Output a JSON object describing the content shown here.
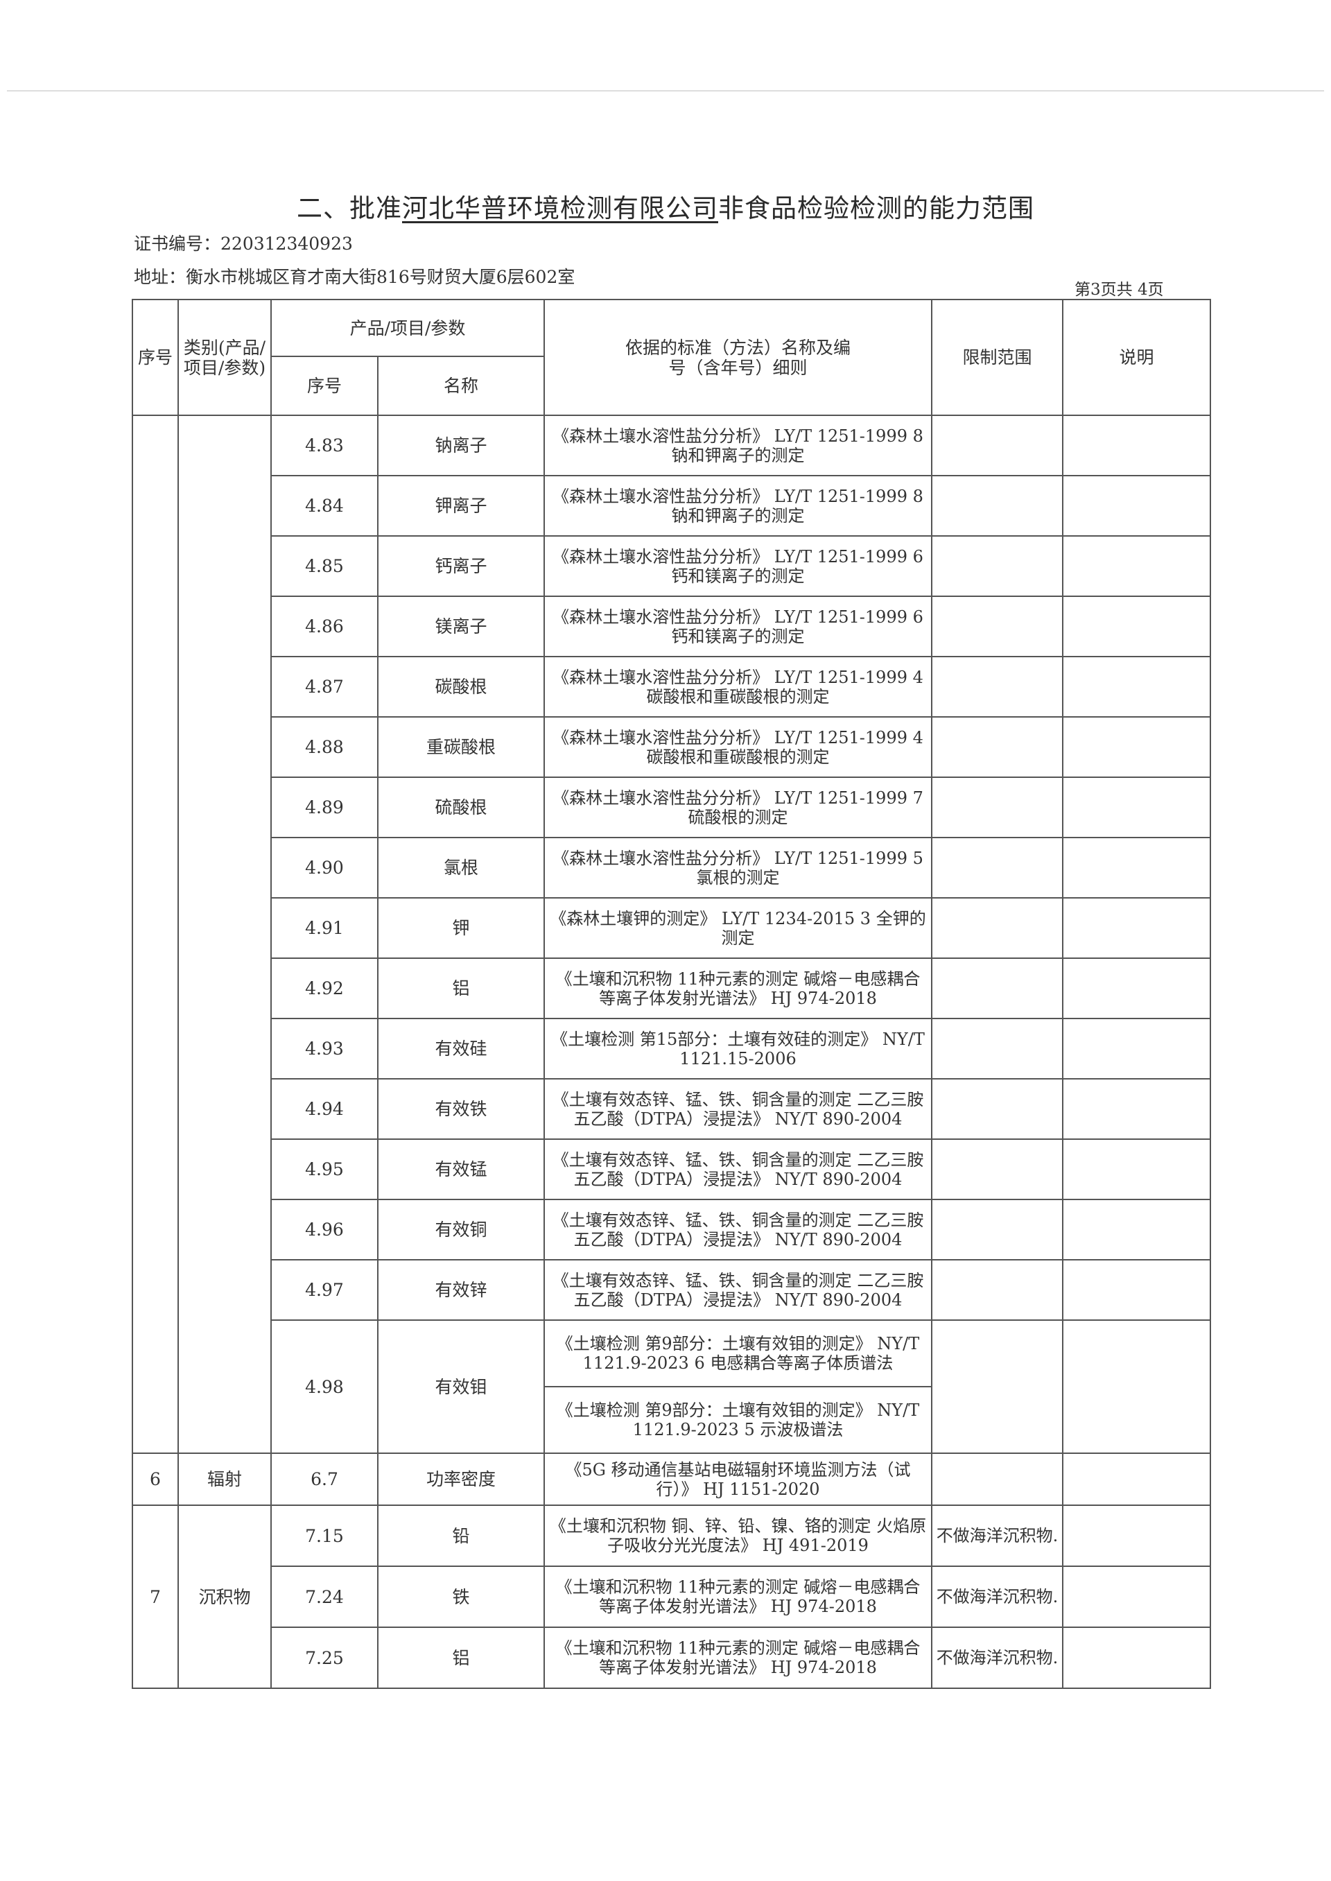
{
  "title": {
    "prefix": "二、批准",
    "company": "河北华普环境检测有限公司",
    "suffix": "非食品检验检测的能力范围"
  },
  "certificate": {
    "label": "证书编号：",
    "value": "220312340923"
  },
  "address": {
    "label": "地址：",
    "value": "衡水市桃城区育才南大街816号财贸大厦6层602室"
  },
  "page_indicator": "第3页共 4页",
  "headers": {
    "seq": "序号",
    "category": "类别(产品/项目/参数)",
    "product_group": "产品/项目/参数",
    "item_seq": "序号",
    "item_name": "名称",
    "standard": "依据的标准（方法）名称及编号（含年号）细则",
    "limit": "限制范围",
    "note": "说明"
  },
  "sections": [
    {
      "seq": "",
      "category": "",
      "items": [
        {
          "no": "4.83",
          "name": "钠离子",
          "standards": [
            "《森林土壤水溶性盐分分析》 LY/T 1251-1999 8 钠和钾离子的测定"
          ],
          "limit": ""
        },
        {
          "no": "4.84",
          "name": "钾离子",
          "standards": [
            "《森林土壤水溶性盐分分析》 LY/T 1251-1999 8 钠和钾离子的测定"
          ],
          "limit": ""
        },
        {
          "no": "4.85",
          "name": "钙离子",
          "standards": [
            "《森林土壤水溶性盐分分析》 LY/T 1251-1999 6 钙和镁离子的测定"
          ],
          "limit": ""
        },
        {
          "no": "4.86",
          "name": "镁离子",
          "standards": [
            "《森林土壤水溶性盐分分析》 LY/T 1251-1999 6 钙和镁离子的测定"
          ],
          "limit": ""
        },
        {
          "no": "4.87",
          "name": "碳酸根",
          "standards": [
            "《森林土壤水溶性盐分分析》 LY/T 1251-1999 4 碳酸根和重碳酸根的测定"
          ],
          "limit": ""
        },
        {
          "no": "4.88",
          "name": "重碳酸根",
          "standards": [
            "《森林土壤水溶性盐分分析》 LY/T 1251-1999 4 碳酸根和重碳酸根的测定"
          ],
          "limit": ""
        },
        {
          "no": "4.89",
          "name": "硫酸根",
          "standards": [
            "《森林土壤水溶性盐分分析》 LY/T 1251-1999 7 硫酸根的测定"
          ],
          "limit": ""
        },
        {
          "no": "4.90",
          "name": "氯根",
          "standards": [
            "《森林土壤水溶性盐分分析》 LY/T 1251-1999 5 氯根的测定"
          ],
          "limit": ""
        },
        {
          "no": "4.91",
          "name": "钾",
          "standards": [
            "《森林土壤钾的测定》 LY/T 1234-2015 3 全钾的测定"
          ],
          "limit": ""
        },
        {
          "no": "4.92",
          "name": "铝",
          "standards": [
            "《土壤和沉积物 11种元素的测定 碱熔－电感耦合等离子体发射光谱法》 HJ 974-2018"
          ],
          "limit": ""
        },
        {
          "no": "4.93",
          "name": "有效硅",
          "standards": [
            "《土壤检测 第15部分：土壤有效硅的测定》 NY/T 1121.15-2006"
          ],
          "limit": ""
        },
        {
          "no": "4.94",
          "name": "有效铁",
          "standards": [
            "《土壤有效态锌、锰、铁、铜含量的测定 二乙三胺五乙酸（DTPA）浸提法》 NY/T 890-2004"
          ],
          "limit": ""
        },
        {
          "no": "4.95",
          "name": "有效锰",
          "standards": [
            "《土壤有效态锌、锰、铁、铜含量的测定 二乙三胺五乙酸（DTPA）浸提法》 NY/T 890-2004"
          ],
          "limit": ""
        },
        {
          "no": "4.96",
          "name": "有效铜",
          "standards": [
            "《土壤有效态锌、锰、铁、铜含量的测定 二乙三胺五乙酸（DTPA）浸提法》 NY/T 890-2004"
          ],
          "limit": ""
        },
        {
          "no": "4.97",
          "name": "有效锌",
          "standards": [
            "《土壤有效态锌、锰、铁、铜含量的测定 二乙三胺五乙酸（DTPA）浸提法》 NY/T 890-2004"
          ],
          "limit": ""
        },
        {
          "no": "4.98",
          "name": "有效钼",
          "standards": [
            "《土壤检测 第9部分：土壤有效钼的测定》 NY/T 1121.9-2023 6 电感耦合等离子体质谱法",
            "《土壤检测 第9部分：土壤有效钼的测定》 NY/T 1121.9-2023 5 示波极谱法"
          ],
          "limit": ""
        }
      ]
    },
    {
      "seq": "6",
      "category": "辐射",
      "items": [
        {
          "no": "6.7",
          "name": "功率密度",
          "standards": [
            "《5G 移动通信基站电磁辐射环境监测方法（试行）》 HJ 1151-2020"
          ],
          "limit": ""
        }
      ]
    },
    {
      "seq": "7",
      "category": "沉积物",
      "items": [
        {
          "no": "7.15",
          "name": "铅",
          "standards": [
            "《土壤和沉积物 铜、锌、铅、镍、铬的测定 火焰原子吸收分光光度法》 HJ 491-2019"
          ],
          "limit": "不做海洋沉积物."
        },
        {
          "no": "7.24",
          "name": "铁",
          "standards": [
            "《土壤和沉积物 11种元素的测定 碱熔－电感耦合等离子体发射光谱法》 HJ 974-2018"
          ],
          "limit": "不做海洋沉积物."
        },
        {
          "no": "7.25",
          "name": "铝",
          "standards": [
            "《土壤和沉积物 11种元素的测定 碱熔－电感耦合等离子体发射光谱法》 HJ 974-2018"
          ],
          "limit": "不做海洋沉积物."
        }
      ]
    }
  ]
}
